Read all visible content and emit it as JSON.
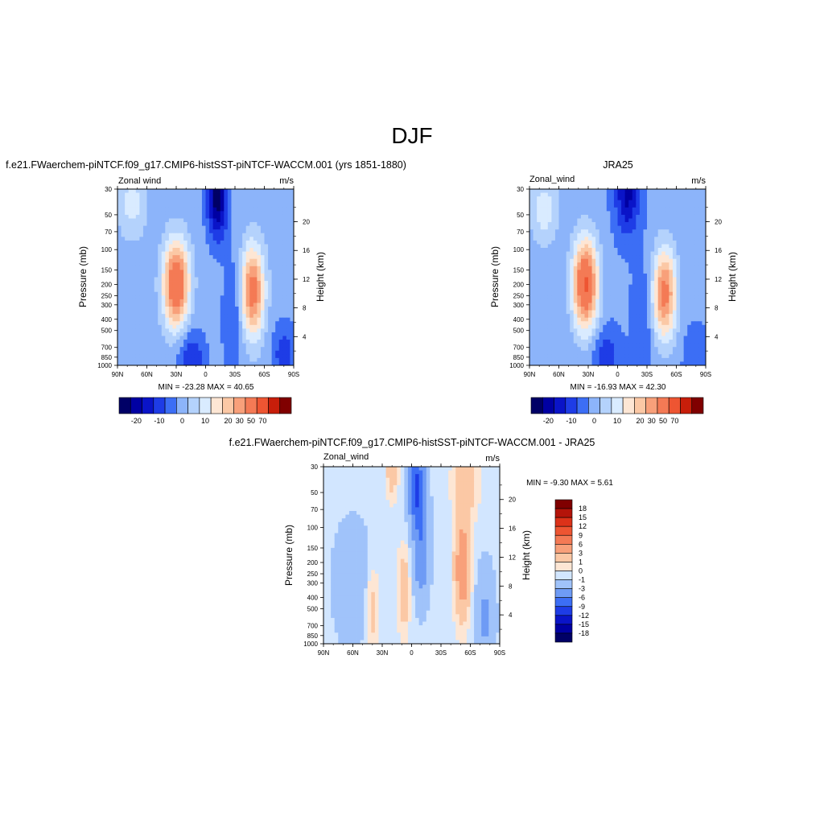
{
  "figure": {
    "title": "DJF",
    "colors": {
      "ramp_18": [
        "#000066",
        "#0000a3",
        "#0a14c8",
        "#1e3ce6",
        "#3c6ef5",
        "#6e9bf5",
        "#a0c3fa",
        "#d2e6ff",
        "#fde6d4",
        "#fbc8a5",
        "#f8a07a",
        "#f47a55",
        "#ee5532",
        "#dc3219",
        "#b4140a",
        "#800000"
      ],
      "ramp_main": [
        "#000066",
        "#0000a3",
        "#0a14c8",
        "#1e3ce6",
        "#3c6ef5",
        "#8cb4fa",
        "#b4d2fc",
        "#d9ebff",
        "#fde6d4",
        "#fbc8a5",
        "#f8a07a",
        "#f47a55",
        "#ee5532",
        "#c81e0a",
        "#800000"
      ]
    },
    "panels": [
      {
        "id": "model",
        "title": "f.e21.FWaerchem-piNTCF.f09_g17.CMIP6-histSST-piNTCF-WACCM.001 (yrs 1851-1880)",
        "left_label": "Zonal wind",
        "right_label": "m/s",
        "ylabel": "Pressure (mb)",
        "ylabel_right": "Height (km)",
        "minmax": "MIN = -23.28  MAX =  40.65",
        "colorbar_labels": [
          "-20",
          "-10",
          "0",
          "10",
          "20",
          "30",
          "50",
          "70"
        ]
      },
      {
        "id": "obs",
        "title": "JRA25",
        "left_label": "Zonal_wind",
        "right_label": "m/s",
        "ylabel": "Pressure (mb)",
        "ylabel_right": "Height (km)",
        "minmax": "MIN = -16.93  MAX =  42.30",
        "colorbar_labels": [
          "-20",
          "-10",
          "0",
          "10",
          "20",
          "30",
          "50",
          "70"
        ]
      },
      {
        "id": "diff",
        "title": "f.e21.FWaerchem-piNTCF.f09_g17.CMIP6-histSST-piNTCF-WACCM.001 - JRA25",
        "left_label": "Zonal_wind",
        "right_label": "m/s",
        "ylabel": "Pressure (mb)",
        "ylabel_right": "Height (km)",
        "minmax": "MIN =  -9.30  MAX =   5.61",
        "colorbar_labels": [
          "18",
          "15",
          "12",
          "9",
          "6",
          "3",
          "1",
          "0",
          "-1",
          "-3",
          "-6",
          "-9",
          "-12",
          "-15",
          "-18"
        ]
      }
    ]
  },
  "chart_data": [
    {
      "type": "heatmap",
      "panel": "model",
      "title": "f.e21.FWaerchem-piNTCF.f09_g17.CMIP6-histSST-piNTCF-WACCM.001 (yrs 1851-1880)",
      "xlabel": "",
      "ylabel": "Pressure (mb)",
      "ylabel_right": "Height (km)",
      "x_ticks": [
        "90N",
        "60N",
        "30N",
        "0",
        "30S",
        "60S",
        "90S"
      ],
      "y_ticks": [
        "30",
        "50",
        "70",
        "100",
        "150",
        "200",
        "250",
        "300",
        "400",
        "500",
        "700",
        "850",
        "1000"
      ],
      "y_right_ticks": [
        "20",
        "16",
        "12",
        "8",
        "4"
      ],
      "ylim": [
        1000,
        30
      ],
      "y_scale": "log",
      "units": "m/s",
      "min": -23.28,
      "max": 40.65,
      "contour_levels": [
        -20,
        -15,
        -10,
        -5,
        0,
        5,
        10,
        15,
        20,
        25,
        30,
        40,
        50,
        60,
        70
      ],
      "features": [
        {
          "kind": "jet",
          "lat": 30,
          "p": 200,
          "value": 40.65
        },
        {
          "kind": "jet",
          "lat": -50,
          "p": 250,
          "value": 34
        },
        {
          "kind": "easterly",
          "lat": -15,
          "p": 35,
          "value": -23.28
        }
      ]
    },
    {
      "type": "heatmap",
      "panel": "obs",
      "title": "JRA25",
      "xlabel": "",
      "ylabel": "Pressure (mb)",
      "ylabel_right": "Height (km)",
      "x_ticks": [
        "90N",
        "60N",
        "30N",
        "0",
        "30S",
        "60S",
        "90S"
      ],
      "y_ticks": [
        "30",
        "50",
        "70",
        "100",
        "150",
        "200",
        "250",
        "300",
        "400",
        "500",
        "700",
        "850",
        "1000"
      ],
      "y_right_ticks": [
        "20",
        "16",
        "12",
        "8",
        "4"
      ],
      "ylim": [
        1000,
        30
      ],
      "y_scale": "log",
      "units": "m/s",
      "min": -16.93,
      "max": 42.3,
      "contour_levels": [
        -20,
        -15,
        -10,
        -5,
        0,
        5,
        10,
        15,
        20,
        25,
        30,
        40,
        50,
        60,
        70
      ],
      "features": [
        {
          "kind": "jet",
          "lat": 33,
          "p": 200,
          "value": 42.3
        },
        {
          "kind": "jet",
          "lat": -50,
          "p": 250,
          "value": 32
        },
        {
          "kind": "easterly",
          "lat": -12,
          "p": 35,
          "value": -16.93
        }
      ]
    },
    {
      "type": "heatmap",
      "panel": "diff",
      "title": "f.e21.FWaerchem-piNTCF.f09_g17.CMIP6-histSST-piNTCF-WACCM.001 - JRA25",
      "xlabel": "",
      "ylabel": "Pressure (mb)",
      "ylabel_right": "Height (km)",
      "x_ticks": [
        "90N",
        "60N",
        "30N",
        "0",
        "30S",
        "60S",
        "90S"
      ],
      "y_ticks": [
        "30",
        "50",
        "70",
        "100",
        "150",
        "200",
        "250",
        "300",
        "400",
        "500",
        "700",
        "850",
        "1000"
      ],
      "y_right_ticks": [
        "20",
        "16",
        "12",
        "8",
        "4"
      ],
      "ylim": [
        1000,
        30
      ],
      "y_scale": "log",
      "units": "m/s",
      "min": -9.3,
      "max": 5.61,
      "contour_levels": [
        -18,
        -15,
        -12,
        -9,
        -6,
        -3,
        -1,
        0,
        1,
        3,
        6,
        9,
        12,
        15,
        18
      ],
      "features": [
        {
          "kind": "negative",
          "lat": -5,
          "p": 45,
          "value": -9.3
        },
        {
          "kind": "positive",
          "lat": -50,
          "p": 200,
          "value": 5.61
        },
        {
          "kind": "positive",
          "lat": 10,
          "p": 300,
          "value": 3
        }
      ]
    }
  ]
}
